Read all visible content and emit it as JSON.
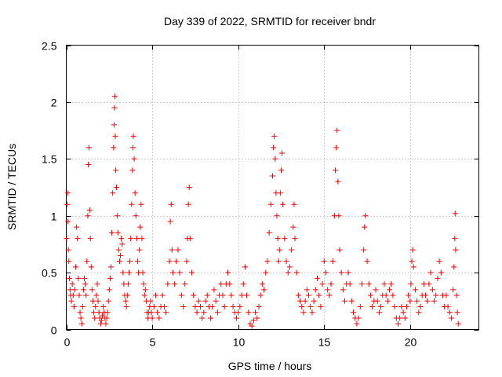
{
  "chart_data": {
    "type": "scatter",
    "title": "Day 339 of 2022, SRMTID for receiver bndr",
    "xlabel": "GPS time / hours",
    "ylabel": "SRMTID / TECUs",
    "xlim": [
      0,
      24
    ],
    "ylim": [
      0,
      2.5
    ],
    "xticks": [
      0,
      5,
      10,
      15,
      20
    ],
    "xtick_labels": [
      "0",
      "5",
      "10",
      "15",
      "20"
    ],
    "yticks": [
      0,
      0.5,
      1,
      1.5,
      2,
      2.5
    ],
    "ytick_labels": [
      "0",
      "0.5",
      "1",
      "1.5",
      "2",
      "2.5"
    ],
    "grid": true,
    "marker": "+",
    "color": "#ff0000",
    "series": [
      {
        "points": [
          [
            0.02,
            0.8
          ],
          [
            0.05,
            1.1
          ],
          [
            0.08,
            1.2
          ],
          [
            0.1,
            0.95
          ],
          [
            0.12,
            0.7
          ],
          [
            0.15,
            0.6
          ],
          [
            0.18,
            0.45
          ],
          [
            0.22,
            0.35
          ],
          [
            0.25,
            0.3
          ],
          [
            0.3,
            0.25
          ],
          [
            0.35,
            0.4
          ],
          [
            0.4,
            0.3
          ],
          [
            0.45,
            0.2
          ],
          [
            0.5,
            0.35
          ],
          [
            0.55,
            0.55
          ],
          [
            0.6,
            0.9
          ],
          [
            0.65,
            0.8
          ],
          [
            0.7,
            0.45
          ],
          [
            0.75,
            0.3
          ],
          [
            0.8,
            0.15
          ],
          [
            0.85,
            0.1
          ],
          [
            0.9,
            0.05
          ],
          [
            0.95,
            0.2
          ],
          [
            1.0,
            0.35
          ],
          [
            1.05,
            0.45
          ],
          [
            1.1,
            0.4
          ],
          [
            1.15,
            0.3
          ],
          [
            1.2,
            0.6
          ],
          [
            1.25,
            1.0
          ],
          [
            1.28,
            1.45
          ],
          [
            1.32,
            1.6
          ],
          [
            1.36,
            1.05
          ],
          [
            1.4,
            0.8
          ],
          [
            1.45,
            0.55
          ],
          [
            1.5,
            0.35
          ],
          [
            1.55,
            0.25
          ],
          [
            1.6,
            0.15
          ],
          [
            1.65,
            0.1
          ],
          [
            1.7,
            0.2
          ],
          [
            1.75,
            0.3
          ],
          [
            1.8,
            0.4
          ],
          [
            1.85,
            0.25
          ],
          [
            1.9,
            0.15
          ],
          [
            1.95,
            0.1
          ],
          [
            2.0,
            0.05
          ],
          [
            2.05,
            0.08
          ],
          [
            2.1,
            0.12
          ],
          [
            2.15,
            0.2
          ],
          [
            2.2,
            0.15
          ],
          [
            2.25,
            0.1
          ],
          [
            2.3,
            0.05
          ],
          [
            2.35,
            0.1
          ],
          [
            2.4,
            0.15
          ],
          [
            2.45,
            0.25
          ],
          [
            2.5,
            0.35
          ],
          [
            2.55,
            0.45
          ],
          [
            2.6,
            0.55
          ],
          [
            2.65,
            0.85
          ],
          [
            2.7,
            1.2
          ],
          [
            2.75,
            1.6
          ],
          [
            2.78,
            1.8
          ],
          [
            2.8,
            1.95
          ],
          [
            2.82,
            2.05
          ],
          [
            2.85,
            1.7
          ],
          [
            2.88,
            1.4
          ],
          [
            2.92,
            1.25
          ],
          [
            2.96,
            1.0
          ],
          [
            3.0,
            0.85
          ],
          [
            3.05,
            0.7
          ],
          [
            3.1,
            0.6
          ],
          [
            3.15,
            0.65
          ],
          [
            3.2,
            0.8
          ],
          [
            3.25,
            0.75
          ],
          [
            3.3,
            0.5
          ],
          [
            3.35,
            0.4
          ],
          [
            3.4,
            0.3
          ],
          [
            3.45,
            0.25
          ],
          [
            3.5,
            0.2
          ],
          [
            3.55,
            0.3
          ],
          [
            3.6,
            0.4
          ],
          [
            3.65,
            0.5
          ],
          [
            3.7,
            0.6
          ],
          [
            3.75,
            0.8
          ],
          [
            3.8,
            1.1
          ],
          [
            3.85,
            1.4
          ],
          [
            3.88,
            1.6
          ],
          [
            3.9,
            1.7
          ],
          [
            3.95,
            1.5
          ],
          [
            4.0,
            1.2
          ],
          [
            4.05,
            1.0
          ],
          [
            4.1,
            0.8
          ],
          [
            4.15,
            0.6
          ],
          [
            4.2,
            0.5
          ],
          [
            4.25,
            0.7
          ],
          [
            4.3,
            0.9
          ],
          [
            4.35,
            1.1
          ],
          [
            4.4,
            0.8
          ],
          [
            4.45,
            0.5
          ],
          [
            4.5,
            0.4
          ],
          [
            4.55,
            0.3
          ],
          [
            4.6,
            0.35
          ],
          [
            4.65,
            0.25
          ],
          [
            4.7,
            0.15
          ],
          [
            4.75,
            0.1
          ],
          [
            4.8,
            0.15
          ],
          [
            4.85,
            0.2
          ],
          [
            4.9,
            0.25
          ],
          [
            4.95,
            0.15
          ],
          [
            5.0,
            0.1
          ],
          [
            5.1,
            0.2
          ],
          [
            5.2,
            0.3
          ],
          [
            5.3,
            0.15
          ],
          [
            5.4,
            0.1
          ],
          [
            5.5,
            0.2
          ],
          [
            5.6,
            0.3
          ],
          [
            5.7,
            0.2
          ],
          [
            5.8,
            0.15
          ],
          [
            5.9,
            0.4
          ],
          [
            6.0,
            0.6
          ],
          [
            6.05,
            0.95
          ],
          [
            6.1,
            1.1
          ],
          [
            6.15,
            0.7
          ],
          [
            6.2,
            0.5
          ],
          [
            6.3,
            0.4
          ],
          [
            6.4,
            0.6
          ],
          [
            6.5,
            0.7
          ],
          [
            6.6,
            0.5
          ],
          [
            6.7,
            0.3
          ],
          [
            6.8,
            0.2
          ],
          [
            6.9,
            0.4
          ],
          [
            7.0,
            0.6
          ],
          [
            7.05,
            0.8
          ],
          [
            7.1,
            1.1
          ],
          [
            7.15,
            1.25
          ],
          [
            7.2,
            0.8
          ],
          [
            7.3,
            0.5
          ],
          [
            7.4,
            0.3
          ],
          [
            7.5,
            0.2
          ],
          [
            7.6,
            0.15
          ],
          [
            7.7,
            0.25
          ],
          [
            7.8,
            0.2
          ],
          [
            7.9,
            0.1
          ],
          [
            8.0,
            0.15
          ],
          [
            8.1,
            0.25
          ],
          [
            8.2,
            0.3
          ],
          [
            8.3,
            0.2
          ],
          [
            8.4,
            0.1
          ],
          [
            8.5,
            0.2
          ],
          [
            8.6,
            0.35
          ],
          [
            8.7,
            0.25
          ],
          [
            8.8,
            0.15
          ],
          [
            8.9,
            0.3
          ],
          [
            9.0,
            0.4
          ],
          [
            9.1,
            0.3
          ],
          [
            9.2,
            0.2
          ],
          [
            9.3,
            0.4
          ],
          [
            9.4,
            0.5
          ],
          [
            9.5,
            0.4
          ],
          [
            9.6,
            0.3
          ],
          [
            9.7,
            0.2
          ],
          [
            9.8,
            0.15
          ],
          [
            9.9,
            0.1
          ],
          [
            10.0,
            0.15
          ],
          [
            10.1,
            0.2
          ],
          [
            10.2,
            0.3
          ],
          [
            10.3,
            0.4
          ],
          [
            10.4,
            0.55
          ],
          [
            10.5,
            0.3
          ],
          [
            10.6,
            0.15
          ],
          [
            10.7,
            0.05
          ],
          [
            10.8,
            0.03
          ],
          [
            10.9,
            0.08
          ],
          [
            11.0,
            0.15
          ],
          [
            11.1,
            0.1
          ],
          [
            11.2,
            0.2
          ],
          [
            11.3,
            0.3
          ],
          [
            11.4,
            0.4
          ],
          [
            11.5,
            0.35
          ],
          [
            11.6,
            0.5
          ],
          [
            11.7,
            0.6
          ],
          [
            11.8,
            0.85
          ],
          [
            11.9,
            1.1
          ],
          [
            12.0,
            1.35
          ],
          [
            12.05,
            1.6
          ],
          [
            12.1,
            1.7
          ],
          [
            12.15,
            1.5
          ],
          [
            12.2,
            1.2
          ],
          [
            12.25,
            1.0
          ],
          [
            12.3,
            0.8
          ],
          [
            12.35,
            0.6
          ],
          [
            12.4,
            0.7
          ],
          [
            12.45,
            1.2
          ],
          [
            12.5,
            1.4
          ],
          [
            12.55,
            1.55
          ],
          [
            12.6,
            1.1
          ],
          [
            12.7,
            0.8
          ],
          [
            12.8,
            0.6
          ],
          [
            12.9,
            0.5
          ],
          [
            13.0,
            0.55
          ],
          [
            13.1,
            0.7
          ],
          [
            13.2,
            0.9
          ],
          [
            13.25,
            1.1
          ],
          [
            13.3,
            0.8
          ],
          [
            13.4,
            0.5
          ],
          [
            13.5,
            0.3
          ],
          [
            13.6,
            0.25
          ],
          [
            13.7,
            0.2
          ],
          [
            13.8,
            0.15
          ],
          [
            13.9,
            0.25
          ],
          [
            14.0,
            0.35
          ],
          [
            14.1,
            0.3
          ],
          [
            14.2,
            0.2
          ],
          [
            14.3,
            0.15
          ],
          [
            14.4,
            0.25
          ],
          [
            14.5,
            0.35
          ],
          [
            14.6,
            0.45
          ],
          [
            14.7,
            0.3
          ],
          [
            14.8,
            0.2
          ],
          [
            14.9,
            0.4
          ],
          [
            15.0,
            0.6
          ],
          [
            15.1,
            0.5
          ],
          [
            15.2,
            0.35
          ],
          [
            15.3,
            0.3
          ],
          [
            15.4,
            0.4
          ],
          [
            15.5,
            0.6
          ],
          [
            15.6,
            1.0
          ],
          [
            15.65,
            1.4
          ],
          [
            15.7,
            1.6
          ],
          [
            15.75,
            1.75
          ],
          [
            15.8,
            1.3
          ],
          [
            15.85,
            1.0
          ],
          [
            15.9,
            0.7
          ],
          [
            16.0,
            0.5
          ],
          [
            16.1,
            0.35
          ],
          [
            16.2,
            0.25
          ],
          [
            16.3,
            0.4
          ],
          [
            16.4,
            0.5
          ],
          [
            16.5,
            0.4
          ],
          [
            16.6,
            0.25
          ],
          [
            16.7,
            0.15
          ],
          [
            16.8,
            0.1
          ],
          [
            16.9,
            0.05
          ],
          [
            17.0,
            0.1
          ],
          [
            17.1,
            0.2
          ],
          [
            17.2,
            0.4
          ],
          [
            17.3,
            0.7
          ],
          [
            17.35,
            0.9
          ],
          [
            17.4,
            1.0
          ],
          [
            17.5,
            0.6
          ],
          [
            17.6,
            0.4
          ],
          [
            17.7,
            0.3
          ],
          [
            17.8,
            0.2
          ],
          [
            17.9,
            0.25
          ],
          [
            18.0,
            0.35
          ],
          [
            18.1,
            0.25
          ],
          [
            18.2,
            0.15
          ],
          [
            18.3,
            0.2
          ],
          [
            18.4,
            0.3
          ],
          [
            18.5,
            0.4
          ],
          [
            18.6,
            0.3
          ],
          [
            18.7,
            0.25
          ],
          [
            18.8,
            0.35
          ],
          [
            18.9,
            0.4
          ],
          [
            19.0,
            0.3
          ],
          [
            19.1,
            0.2
          ],
          [
            19.2,
            0.1
          ],
          [
            19.3,
            0.05
          ],
          [
            19.4,
            0.1
          ],
          [
            19.5,
            0.2
          ],
          [
            19.6,
            0.15
          ],
          [
            19.7,
            0.1
          ],
          [
            19.8,
            0.2
          ],
          [
            19.9,
            0.3
          ],
          [
            20.0,
            0.25
          ],
          [
            20.05,
            0.4
          ],
          [
            20.1,
            0.6
          ],
          [
            20.15,
            0.7
          ],
          [
            20.2,
            0.55
          ],
          [
            20.3,
            0.35
          ],
          [
            20.4,
            0.25
          ],
          [
            20.5,
            0.15
          ],
          [
            20.6,
            0.2
          ],
          [
            20.7,
            0.3
          ],
          [
            20.8,
            0.4
          ],
          [
            20.9,
            0.3
          ],
          [
            21.0,
            0.25
          ],
          [
            21.1,
            0.4
          ],
          [
            21.2,
            0.5
          ],
          [
            21.3,
            0.35
          ],
          [
            21.4,
            0.25
          ],
          [
            21.5,
            0.3
          ],
          [
            21.6,
            0.45
          ],
          [
            21.7,
            0.6
          ],
          [
            21.8,
            0.5
          ],
          [
            21.9,
            0.3
          ],
          [
            22.0,
            0.2
          ],
          [
            22.1,
            0.3
          ],
          [
            22.2,
            0.2
          ],
          [
            22.3,
            0.15
          ],
          [
            22.4,
            0.1
          ],
          [
            22.5,
            0.35
          ],
          [
            22.55,
            0.55
          ],
          [
            22.6,
            0.8
          ],
          [
            22.62,
            1.02
          ],
          [
            22.65,
            0.7
          ],
          [
            22.7,
            0.3
          ],
          [
            22.75,
            0.15
          ],
          [
            22.8,
            0.05
          ]
        ]
      }
    ]
  }
}
